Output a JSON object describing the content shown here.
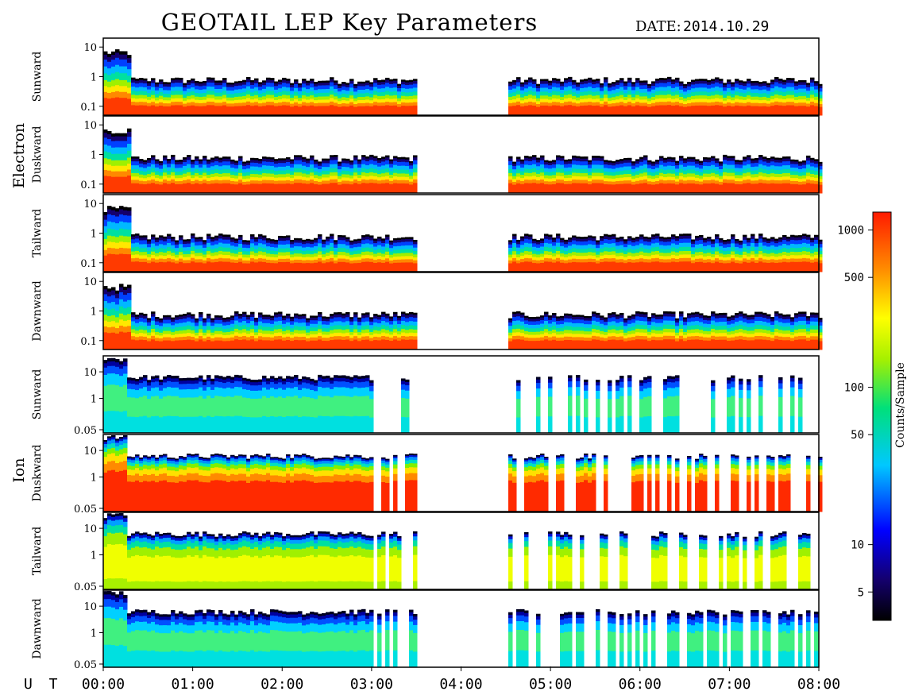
{
  "header": {
    "title": "GEOTAIL LEP Key Parameters",
    "date_label": "DATE:",
    "date_value": "2014.10.29"
  },
  "groups": [
    {
      "label": "Electron"
    },
    {
      "label": "Ion"
    }
  ],
  "x_axis": {
    "label": "U T",
    "ticks": [
      "00:00",
      "01:00",
      "02:00",
      "03:00",
      "04:00",
      "05:00",
      "06:00",
      "07:00",
      "08:00"
    ],
    "range_hours": [
      0,
      8
    ]
  },
  "colorbar": {
    "label": "Counts/Sample",
    "ticks": [
      "5",
      "10",
      "50",
      "100",
      "500",
      "1000"
    ],
    "range": [
      3.3,
      1300
    ],
    "scale": "log"
  },
  "chart_data": {
    "type": "heatmap",
    "title": "GEOTAIL LEP Key Parameters",
    "xlabel": "U T",
    "x_unit": "hours UT",
    "xlim": [
      0,
      8
    ],
    "y_scale": "log",
    "data_gaps_hours": [
      [
        3.5,
        4.55
      ]
    ],
    "panels": [
      {
        "species": "Electron",
        "direction": "Sunward",
        "yticks": [
          "10",
          "1",
          "0.1"
        ],
        "ylim": [
          0.05,
          20
        ]
      },
      {
        "species": "Electron",
        "direction": "Duskward",
        "yticks": [
          "10",
          "1",
          "0.1"
        ],
        "ylim": [
          0.05,
          20
        ]
      },
      {
        "species": "Electron",
        "direction": "Tailward",
        "yticks": [
          "10",
          "1",
          "0.1"
        ],
        "ylim": [
          0.05,
          20
        ]
      },
      {
        "species": "Electron",
        "direction": "Dawnward",
        "yticks": [
          "10",
          "1",
          "0.1"
        ],
        "ylim": [
          0.05,
          20
        ]
      },
      {
        "species": "Ion",
        "direction": "Sunward",
        "yticks": [
          "10",
          "1",
          "0.05"
        ],
        "ylim": [
          0.05,
          40
        ]
      },
      {
        "species": "Ion",
        "direction": "Duskward",
        "yticks": [
          "10",
          "1",
          "0.05"
        ],
        "ylim": [
          0.05,
          40
        ]
      },
      {
        "species": "Ion",
        "direction": "Tailward",
        "yticks": [
          "10",
          "1",
          "0.05"
        ],
        "ylim": [
          0.05,
          40
        ]
      },
      {
        "species": "Ion",
        "direction": "Dawnward",
        "yticks": [
          "10",
          "1",
          "0.05"
        ],
        "ylim": [
          0.05,
          40
        ]
      }
    ],
    "colorbar": {
      "label": "Counts/Sample",
      "scale": "log",
      "range": [
        3.3,
        1300
      ],
      "ticks": [
        5,
        10,
        50,
        100,
        500,
        1000
      ]
    }
  }
}
